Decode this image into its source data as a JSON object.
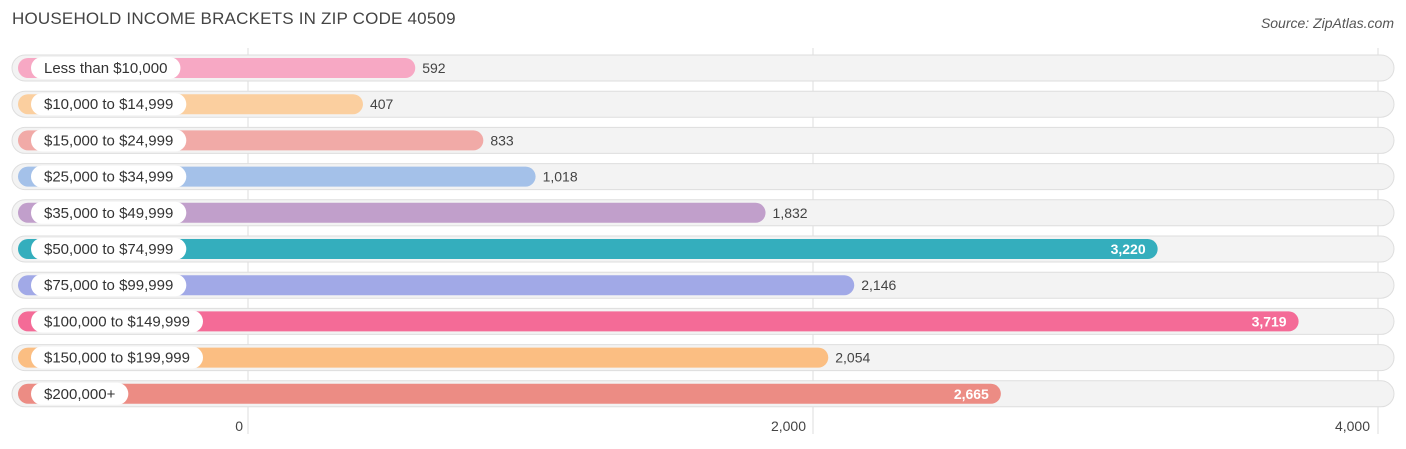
{
  "chart_data": {
    "type": "bar",
    "orientation": "horizontal",
    "title": "HOUSEHOLD INCOME BRACKETS IN ZIP CODE 40509",
    "source": "Source: ZipAtlas.com",
    "categories": [
      "Less than $10,000",
      "$10,000 to $14,999",
      "$15,000 to $24,999",
      "$25,000 to $34,999",
      "$35,000 to $49,999",
      "$50,000 to $74,999",
      "$75,000 to $99,999",
      "$100,000 to $149,999",
      "$150,000 to $199,999",
      "$200,000+"
    ],
    "values": [
      592,
      407,
      833,
      1018,
      1832,
      3220,
      2146,
      3719,
      2054,
      2665
    ],
    "value_labels": [
      "592",
      "407",
      "833",
      "1,018",
      "1,832",
      "3,220",
      "2,146",
      "3,719",
      "2,054",
      "2,665"
    ],
    "colors": [
      "#f7a8c4",
      "#fbcf9f",
      "#f1aaa7",
      "#a4c1e9",
      "#c19fcb",
      "#34aebd",
      "#a1a9e7",
      "#f46b97",
      "#fbbe82",
      "#ec8c84"
    ],
    "xlim": [
      0,
      4000
    ],
    "x_ticks": [
      0,
      2000,
      4000
    ],
    "x_tick_labels": [
      "0",
      "2,000",
      "4,000"
    ],
    "grid": true,
    "legend": "none"
  }
}
